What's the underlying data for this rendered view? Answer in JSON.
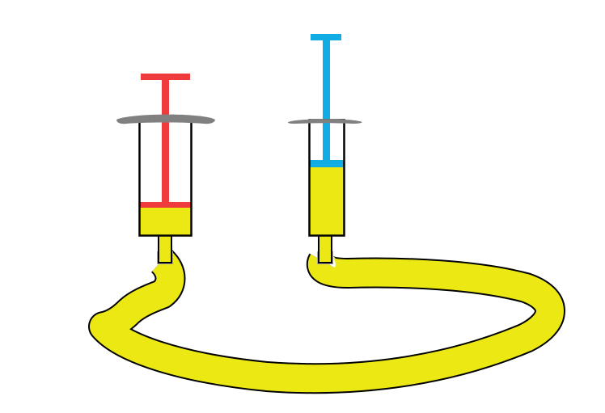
{
  "diagram": {
    "description_free": true,
    "colors": {
      "background": "#ffffff",
      "fluid": "#ece814",
      "outline": "#000000",
      "left_plunger": "#ef3b3b",
      "right_plunger": "#11ace4",
      "flange": "#808080",
      "connector": "#a7a7a7"
    },
    "syringes": [
      {
        "id": "left",
        "plunger_color_key": "left_plunger",
        "fill_level": 0.25
      },
      {
        "id": "right",
        "plunger_color_key": "right_plunger",
        "fill_level": 0.6
      }
    ]
  }
}
